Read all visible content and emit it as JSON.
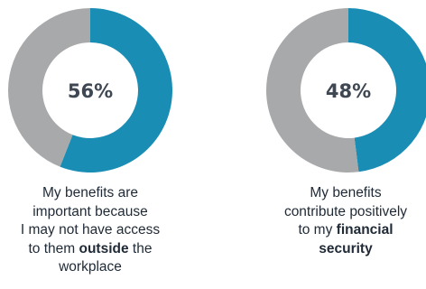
{
  "colors": {
    "primary": "#1a8db5",
    "remainder": "#a8a9ab"
  },
  "chart_data": [
    {
      "type": "pie",
      "values": [
        56,
        44
      ],
      "value_label": "56%",
      "caption": [
        [
          {
            "text": "My benefits are"
          }
        ],
        [
          {
            "text": "important because"
          }
        ],
        [
          {
            "text": "I may not have access"
          }
        ],
        [
          {
            "text": "to them "
          },
          {
            "text": "outside",
            "bold": true
          },
          {
            "text": " the"
          }
        ],
        [
          {
            "text": "workplace"
          }
        ]
      ]
    },
    {
      "type": "pie",
      "values": [
        48,
        52
      ],
      "value_label": "48%",
      "caption": [
        [
          {
            "text": "My benefits"
          }
        ],
        [
          {
            "text": "contribute positively"
          }
        ],
        [
          {
            "text": "to my "
          },
          {
            "text": "financial",
            "bold": true
          }
        ],
        [
          {
            "text": "security",
            "bold": true
          }
        ]
      ]
    }
  ]
}
